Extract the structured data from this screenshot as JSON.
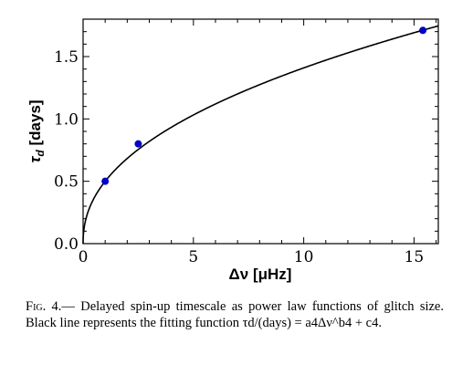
{
  "chart_data": {
    "type": "scatter",
    "title": "",
    "xlabel_symbol": "Δν",
    "xlabel_unit": "[μHz]",
    "ylabel_symbol": "τ",
    "ylabel_sub": "d",
    "ylabel_unit": "[days]",
    "xlim": [
      0,
      16.1
    ],
    "ylim": [
      0,
      1.8
    ],
    "xticks": [
      0,
      5,
      10,
      15
    ],
    "xtick_labels": [
      "0",
      "5",
      "10",
      "15"
    ],
    "yticks": [
      0.0,
      0.5,
      1.0,
      1.5
    ],
    "ytick_labels": [
      "0.0",
      "0.5",
      "1.0",
      "1.5"
    ],
    "grid": false,
    "series": [
      {
        "kind": "points",
        "color": "#0000c8",
        "x": [
          1.0,
          2.5,
          15.4
        ],
        "y": [
          0.5,
          0.8,
          1.71
        ]
      },
      {
        "kind": "fit-line",
        "color": "#000000",
        "model": {
          "a4": 0.5,
          "b4": 0.45,
          "c4": 0.0
        }
      }
    ]
  },
  "caption": {
    "fig_label": "Fig. 4.",
    "text": "— Delayed spin-up timescale as power law functions of glitch size. Black line represents the fitting function τd/(days) = a4Δν^b4 + c4."
  }
}
